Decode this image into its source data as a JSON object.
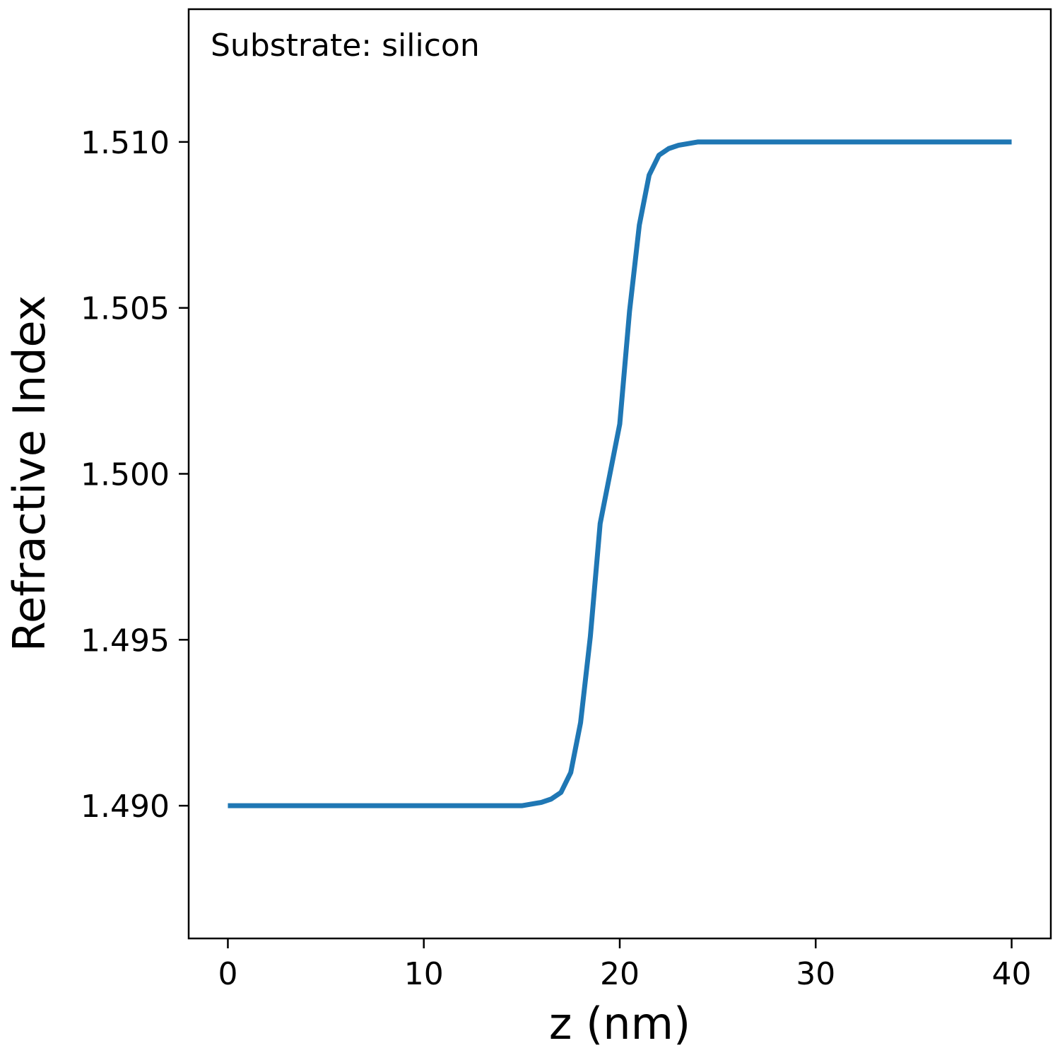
{
  "chart_data": {
    "type": "line",
    "title": "",
    "xlabel": "z (nm)",
    "ylabel": "Refractive Index",
    "annotation": "Substrate: silicon",
    "xlim": [
      -2,
      42
    ],
    "ylim": [
      1.486,
      1.514
    ],
    "xticks": [
      0,
      10,
      20,
      30,
      40
    ],
    "xtick_labels": [
      "0",
      "10",
      "20",
      "30",
      "40"
    ],
    "yticks": [
      1.49,
      1.495,
      1.5,
      1.505,
      1.51
    ],
    "ytick_labels": [
      "1.490",
      "1.495",
      "1.500",
      "1.505",
      "1.510"
    ],
    "grid": false,
    "series": [
      {
        "color": "#1f77b4",
        "x": [
          0,
          2,
          4,
          6,
          8,
          10,
          12,
          14,
          15,
          16,
          16.5,
          17,
          17.5,
          18,
          18.5,
          19,
          19.5,
          20,
          20.5,
          21,
          21.5,
          22,
          22.5,
          23,
          23.5,
          24,
          25,
          26,
          28,
          30,
          32,
          34,
          36,
          38,
          40
        ],
        "y": [
          1.49,
          1.49,
          1.49,
          1.49,
          1.49,
          1.49,
          1.49,
          1.49,
          1.49,
          1.4901,
          1.4902,
          1.4904,
          1.491,
          1.4925,
          1.4951,
          1.4985,
          1.5,
          1.5015,
          1.5049,
          1.5075,
          1.509,
          1.5096,
          1.5098,
          1.5099,
          1.50995,
          1.51,
          1.51,
          1.51,
          1.51,
          1.51,
          1.51,
          1.51,
          1.51,
          1.51,
          1.51
        ]
      }
    ]
  }
}
